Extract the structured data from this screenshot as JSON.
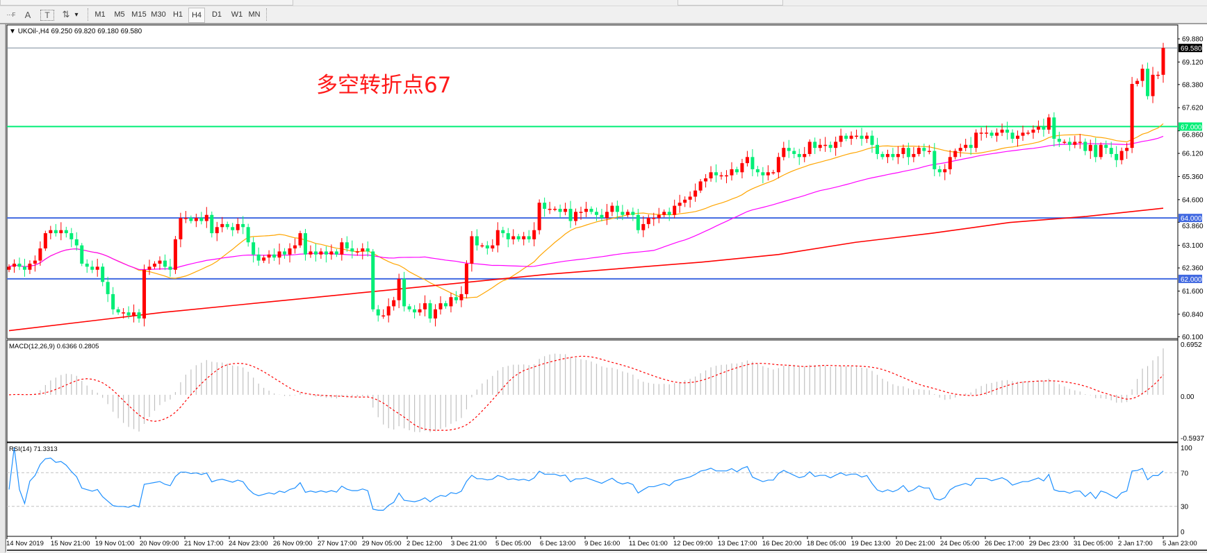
{
  "toolbar": {
    "tools": [
      {
        "name": "period-separators-icon",
        "glyph": "⋯F"
      },
      {
        "name": "text-tool-icon",
        "glyph": "A"
      },
      {
        "name": "text-label-tool-icon",
        "glyph": "T"
      },
      {
        "name": "arrows-tool-icon",
        "glyph": "⇅"
      },
      {
        "name": "dropdown-arrow-icon",
        "glyph": "▾"
      }
    ],
    "timeframes": [
      "M1",
      "M5",
      "M15",
      "M30",
      "H1",
      "H4",
      "D1",
      "W1",
      "MN"
    ],
    "selected_timeframe": "H4"
  },
  "chart": {
    "header_arrow": "▼",
    "symbol": "UKOil-,H4",
    "ohlc": "69.250 69.820 69.180 69.580",
    "annotation": "多空转折点67"
  },
  "chart_data": {
    "type": "candlestick",
    "up_color": "#ff0000",
    "down_color": "#00ee76",
    "price_ticks": [
      "69.880",
      "69.120",
      "68.380",
      "67.620",
      "66.860",
      "66.120",
      "65.360",
      "64.600",
      "63.860",
      "63.100",
      "62.360",
      "61.600",
      "60.840",
      "60.100"
    ],
    "price_range": [
      59.9,
      70.2
    ],
    "current_price": {
      "value": 69.58,
      "label": "69.580",
      "color": "#000000"
    },
    "horizontal_lines": [
      {
        "value": 67.0,
        "label": "67.000",
        "color": "#00ee76"
      },
      {
        "value": 64.0,
        "label": "64.000",
        "color": "#4169e1"
      },
      {
        "value": 62.0,
        "label": "62.000",
        "color": "#4169e1"
      }
    ],
    "close": [
      62.4,
      62.5,
      62.4,
      62.3,
      62.5,
      62.6,
      63.0,
      63.5,
      63.6,
      63.5,
      63.6,
      63.5,
      63.3,
      63.1,
      62.5,
      62.4,
      62.3,
      62.4,
      61.9,
      61.5,
      61.0,
      60.9,
      60.9,
      60.8,
      60.9,
      60.7,
      62.3,
      62.4,
      62.5,
      62.6,
      62.4,
      62.3,
      63.3,
      64.0,
      64.0,
      63.9,
      64.0,
      63.9,
      64.1,
      63.5,
      63.7,
      63.8,
      63.7,
      63.6,
      63.8,
      63.7,
      63.2,
      62.8,
      62.6,
      62.7,
      62.8,
      62.7,
      62.9,
      62.8,
      63.0,
      63.1,
      63.5,
      62.8,
      62.9,
      62.8,
      62.9,
      62.8,
      62.9,
      62.8,
      63.2,
      63.0,
      62.9,
      62.9,
      63.0,
      62.9,
      61.0,
      60.8,
      60.8,
      61.1,
      61.3,
      62.0,
      61.1,
      61.0,
      60.9,
      61.0,
      61.2,
      60.7,
      61.0,
      61.2,
      61.1,
      61.4,
      61.3,
      61.5,
      62.5,
      63.4,
      63.1,
      63.1,
      63.0,
      63.1,
      63.6,
      63.5,
      63.3,
      63.4,
      63.3,
      63.4,
      63.3,
      63.6,
      64.5,
      64.3,
      64.3,
      64.3,
      64.2,
      64.3,
      63.9,
      64.2,
      64.2,
      64.3,
      64.2,
      64.1,
      64.0,
      64.2,
      64.4,
      64.2,
      64.1,
      64.2,
      64.1,
      63.6,
      63.8,
      64.0,
      64.0,
      64.1,
      64.2,
      64.1,
      64.4,
      64.5,
      64.6,
      64.7,
      64.9,
      65.2,
      65.3,
      65.5,
      65.4,
      65.4,
      65.4,
      65.6,
      65.5,
      65.8,
      66.0,
      65.6,
      65.5,
      65.4,
      65.5,
      65.5,
      66.0,
      66.3,
      66.2,
      66.1,
      66.0,
      66.1,
      66.5,
      66.3,
      66.4,
      66.4,
      66.3,
      66.5,
      66.7,
      66.6,
      66.7,
      66.7,
      66.6,
      66.7,
      66.4,
      66.1,
      66.0,
      66.1,
      66.0,
      66.1,
      66.3,
      66.0,
      66.1,
      66.3,
      66.2,
      66.2,
      65.6,
      65.5,
      65.6,
      66.0,
      66.2,
      66.3,
      66.4,
      66.3,
      66.8,
      66.8,
      66.8,
      66.7,
      66.8,
      66.9,
      66.8,
      66.6,
      66.7,
      66.8,
      66.8,
      66.9,
      67.0,
      66.9,
      67.3,
      66.6,
      66.5,
      66.5,
      66.4,
      66.5,
      66.5,
      66.2,
      66.4,
      66.0,
      66.4,
      66.3,
      66.1,
      65.9,
      66.2,
      66.3,
      68.4,
      68.5,
      68.9,
      68.0,
      68.7,
      68.7,
      69.58
    ],
    "moving_averages": [
      {
        "color": "#ffa500",
        "period": 21
      },
      {
        "color": "#ff00ff",
        "period": 55
      },
      {
        "color": "#ff0000",
        "samples": [
          60.3,
          60.6,
          60.9,
          61.15,
          61.4,
          61.65,
          61.9,
          62.15,
          62.35,
          62.55,
          62.8,
          63.2,
          63.5,
          63.85,
          64.05,
          64.32
        ]
      }
    ],
    "macd": {
      "title": "MACD(12,26,9) 0.6366 0.2805",
      "main": 0.6366,
      "signal": 0.2805,
      "ticks": [
        "0.6952",
        "0.00",
        "-0.5937"
      ],
      "range": [
        -0.5937,
        0.6952
      ],
      "histogram_color": "#c0c0c0",
      "signal_color": "#ff0000"
    },
    "rsi": {
      "title": "RSI(14) 71.3313",
      "value": 71.3313,
      "ticks": [
        "100",
        "70",
        "30",
        "0"
      ],
      "levels": [
        30,
        70
      ],
      "range": [
        0,
        100
      ],
      "color": "#1e90ff"
    },
    "time_labels": [
      "14 Nov 2019",
      "15 Nov 21:00",
      "19 Nov 01:00",
      "20 Nov 09:00",
      "21 Nov 17:00",
      "24 Nov 23:00",
      "26 Nov 09:00",
      "27 Nov 17:00",
      "29 Nov 05:00",
      "2 Dec 12:00",
      "3 Dec 21:00",
      "5 Dec 05:00",
      "6 Dec 13:00",
      "9 Dec 16:00",
      "11 Dec 01:00",
      "12 Dec 09:00",
      "13 Dec 17:00",
      "16 Dec 20:00",
      "18 Dec 05:00",
      "19 Dec 13:00",
      "20 Dec 21:00",
      "24 Dec 05:00",
      "26 Dec 17:00",
      "29 Dec 23:00",
      "31 Dec 05:00",
      "2 Jan 17:00",
      "5 Jan 23:00"
    ]
  }
}
